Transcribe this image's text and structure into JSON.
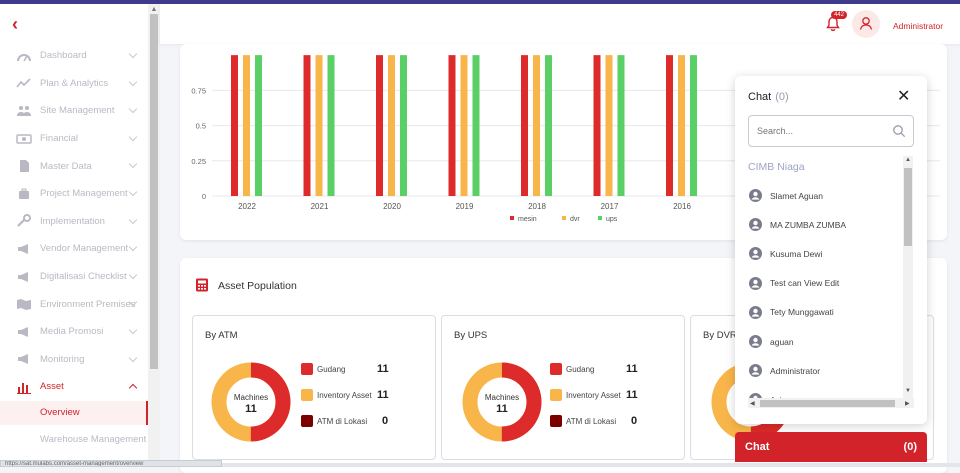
{
  "colors": {
    "accent": "#d2232a",
    "mesin": "#dd2a2a",
    "dvr": "#f8b54a",
    "ups": "#59cf65",
    "gudang": "#dd2a2a",
    "inventory": "#f8b54a",
    "atm_lokasi": "#7a0000"
  },
  "sidebar": {
    "items": [
      {
        "label": "Dashboard",
        "icon": "gauge-icon"
      },
      {
        "label": "Plan & Analytics",
        "icon": "line-chart-icon"
      },
      {
        "label": "Site Management",
        "icon": "people-icon"
      },
      {
        "label": "Financial",
        "icon": "money-icon"
      },
      {
        "label": "Master Data",
        "icon": "document-icon"
      },
      {
        "label": "Project Management",
        "icon": "briefcase-icon"
      },
      {
        "label": "Implementation",
        "icon": "wrench-icon"
      },
      {
        "label": "Vendor Management",
        "icon": "megaphone-icon"
      },
      {
        "label": "Digitalisasi Checklist",
        "icon": "megaphone-icon"
      },
      {
        "label": "Environment Premises",
        "icon": "map-icon"
      },
      {
        "label": "Media Promosi",
        "icon": "megaphone-icon"
      },
      {
        "label": "Monitoring",
        "icon": "megaphone-icon"
      },
      {
        "label": "Asset",
        "icon": "bar-chart-icon"
      }
    ],
    "sub_active": "Overview",
    "sub_next": "Warehouse Management"
  },
  "header": {
    "badge": "442",
    "user": "Administrator"
  },
  "chart_data": {
    "type": "bar",
    "categories": [
      "2022",
      "2021",
      "2020",
      "2019",
      "2018",
      "2017",
      "2016"
    ],
    "series": [
      {
        "name": "mesin",
        "values": [
          1,
          1,
          1,
          1,
          1,
          1,
          1
        ]
      },
      {
        "name": "dvr",
        "values": [
          1,
          1,
          1,
          1,
          1,
          1,
          1
        ]
      },
      {
        "name": "ups",
        "values": [
          1,
          1,
          1,
          1,
          1,
          1,
          1
        ]
      }
    ],
    "yticks": [
      "0",
      "0.25",
      "0.5",
      "0.75"
    ],
    "ylim": [
      0,
      1
    ]
  },
  "asset": {
    "title": "Asset Population",
    "cards": [
      {
        "title": "By ATM",
        "center_label": "Machines",
        "center_value": "11",
        "legend": [
          {
            "label": "Gudang",
            "value": "11"
          },
          {
            "label": "Inventory Asset",
            "value": "11"
          },
          {
            "label": "ATM di Lokasi",
            "value": "0"
          }
        ]
      },
      {
        "title": "By UPS",
        "center_label": "Machines",
        "center_value": "11",
        "legend": [
          {
            "label": "Gudang",
            "value": "11"
          },
          {
            "label": "Inventory Asset",
            "value": "11"
          },
          {
            "label": "ATM di Lokasi",
            "value": "0"
          }
        ]
      },
      {
        "title": "By DVR"
      }
    ]
  },
  "chat": {
    "title": "Chat",
    "count": "(0)",
    "search_placeholder": "Search...",
    "group": "CIMB Niaga",
    "users": [
      "Slamet Aguan",
      "MA ZUMBA ZUMBA",
      "Kusuma Dewi",
      "Test can View Edit",
      "Tety Munggawati",
      "aguan",
      "Administrator",
      "Ayis"
    ],
    "bar_label": "Chat",
    "bar_count": "(0)"
  },
  "status_url": "https://sat.mulabs.com/asset-management/overview"
}
